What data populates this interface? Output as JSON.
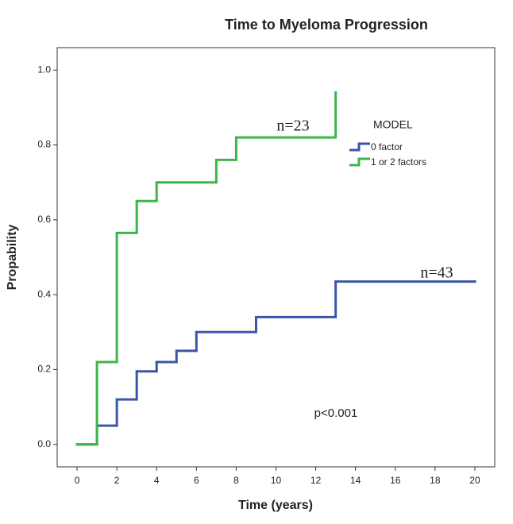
{
  "chart_data": {
    "type": "step",
    "title": "Time to Myeloma Progression",
    "x_label": "Time (years)",
    "y_label": "Propability",
    "legend_title": "MODEL",
    "series": [
      {
        "name": "0 factor",
        "color": "#3b56a8",
        "x": [
          0,
          1,
          2,
          3,
          4,
          5,
          6,
          9,
          13,
          20
        ],
        "values": [
          0,
          0.05,
          0.12,
          0.195,
          0.22,
          0.25,
          0.3,
          0.34,
          0.435,
          0.435
        ]
      },
      {
        "name": "1 or 2 factors",
        "color": "#3db54a",
        "x": [
          0,
          1,
          2,
          3,
          4,
          7,
          8,
          13
        ],
        "values": [
          0,
          0.22,
          0.565,
          0.65,
          0.7,
          0.76,
          0.82,
          0.94
        ]
      }
    ],
    "annotations": [
      "n=23",
      "n=43",
      "p<0.001"
    ],
    "xlim": [
      -1,
      21
    ],
    "ylim": [
      -0.06,
      1.06
    ],
    "xticks": [
      0,
      2,
      4,
      6,
      8,
      10,
      12,
      14,
      16,
      18,
      20
    ],
    "yticks": [
      {
        "value": 0,
        "label": "0.0"
      },
      {
        "value": 0.2,
        "label": "0.2"
      },
      {
        "value": 0.4,
        "label": "0.4"
      },
      {
        "value": 0.6,
        "label": "0.6"
      },
      {
        "value": 0.8,
        "label": "0.8"
      },
      {
        "value": 1,
        "label": "1.0"
      }
    ],
    "grid": false
  }
}
